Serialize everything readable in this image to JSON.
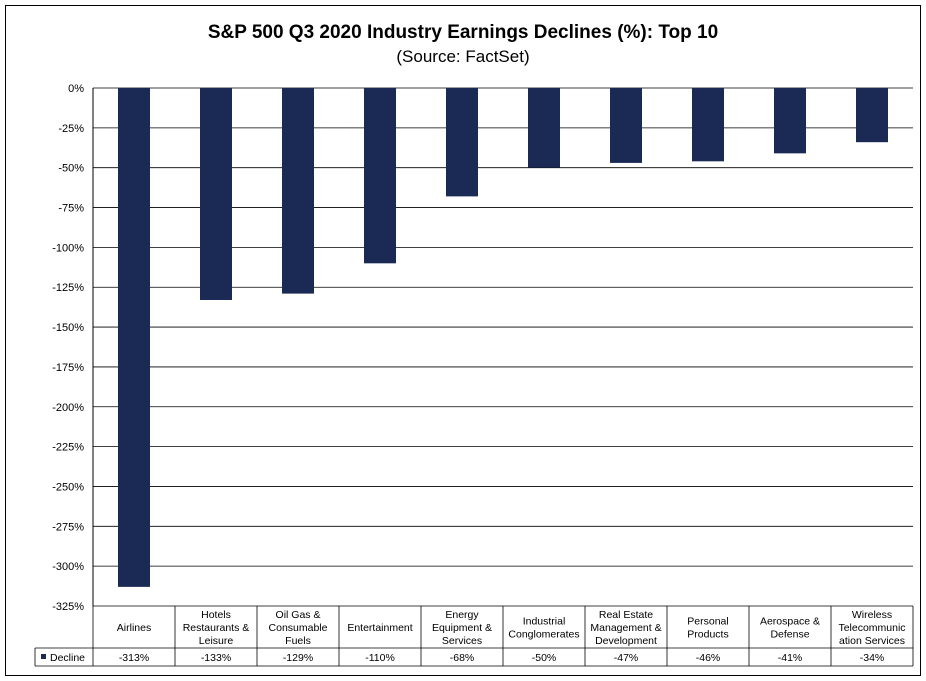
{
  "chart_data": {
    "type": "bar",
    "title": "S&P 500 Q3 2020 Industry Earnings Declines (%): Top 10",
    "subtitle": "(Source: FactSet)",
    "categories": [
      [
        "Airlines"
      ],
      [
        "Hotels",
        "Restaurants &",
        "Leisure"
      ],
      [
        "Oil Gas &",
        "Consumable",
        "Fuels"
      ],
      [
        "Entertainment"
      ],
      [
        "Energy",
        "Equipment &",
        "Services"
      ],
      [
        "Industrial",
        "Conglomerates"
      ],
      [
        "Real Estate",
        "Management &",
        "Development"
      ],
      [
        "Personal",
        "Products"
      ],
      [
        "Aerospace &",
        "Defense"
      ],
      [
        "Wireless",
        "Telecommunic",
        "ation Services"
      ]
    ],
    "series": [
      {
        "name": "Decline",
        "values": [
          -313,
          -133,
          -129,
          -110,
          -68,
          -50,
          -47,
          -46,
          -41,
          -34
        ],
        "labels": [
          "-313%",
          "-133%",
          "-129%",
          "-110%",
          "-68%",
          "-50%",
          "-47%",
          "-46%",
          "-41%",
          "-34%"
        ],
        "color": "#1b2a55"
      }
    ],
    "ylim": [
      -325,
      0
    ],
    "yticks": [
      0,
      -25,
      -50,
      -75,
      -100,
      -125,
      -150,
      -175,
      -200,
      -225,
      -250,
      -275,
      -300,
      -325
    ],
    "ytick_labels": [
      "0%",
      "-25%",
      "-50%",
      "-75%",
      "-100%",
      "-125%",
      "-150%",
      "-175%",
      "-200%",
      "-225%",
      "-250%",
      "-275%",
      "-300%",
      "-325%"
    ],
    "grid": true,
    "legend": "data-table"
  }
}
